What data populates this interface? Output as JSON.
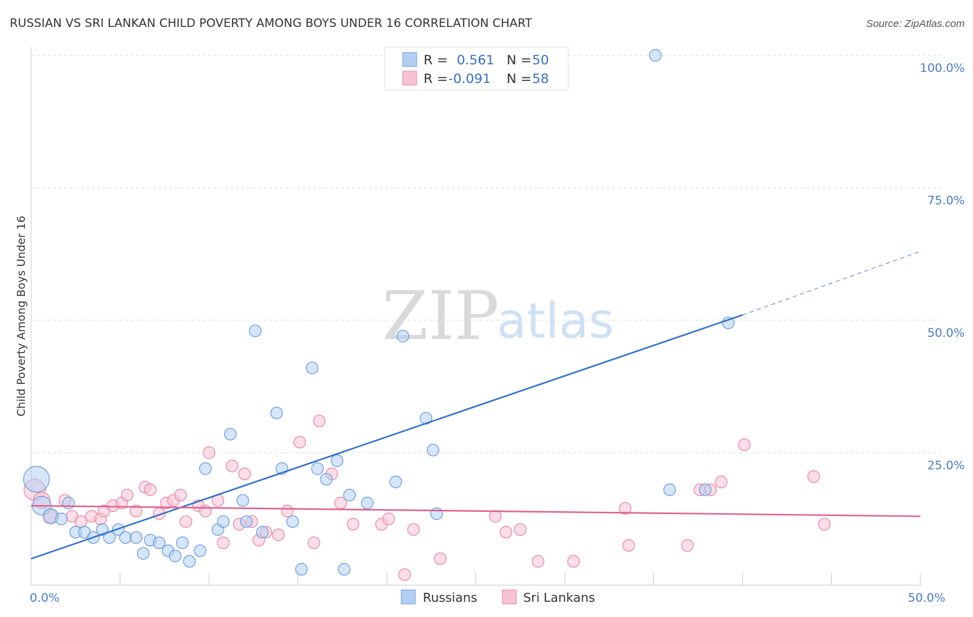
{
  "title": "RUSSIAN VS SRI LANKAN CHILD POVERTY AMONG BOYS UNDER 16 CORRELATION CHART",
  "source": "Source: ZipAtlas.com",
  "watermark": {
    "zip": "ZIP",
    "atlas": "atlas"
  },
  "colors": {
    "russians_fill": "#b5cff3",
    "russians_stroke": "#6d9fe0",
    "russians_line": "#2f6fcc",
    "srilankans_fill": "#f7c3d3",
    "srilankans_stroke": "#e88aa8",
    "srilankans_line": "#e0608c",
    "grid": "#dddddd",
    "tick_text": "#4a7bc4"
  },
  "legend": {
    "russians": {
      "r_label": "R =",
      "r_value": "0.561",
      "n_label": "N =",
      "n_value": "50"
    },
    "srilankans": {
      "r_label": "R =",
      "r_value": "-0.091",
      "n_label": "N =",
      "n_value": "58"
    }
  },
  "chart_data": {
    "type": "scatter",
    "title": "RUSSIAN VS SRI LANKAN CHILD POVERTY AMONG BOYS UNDER 16 CORRELATION CHART",
    "xlabel": "",
    "ylabel": "Child Poverty Among Boys Under 16",
    "xlim": [
      0,
      50
    ],
    "ylim": [
      0,
      100
    ],
    "x_ticks": [
      {
        "value": 0,
        "label": "0.0%"
      },
      {
        "value": 50,
        "label": "50.0%"
      }
    ],
    "y_ticks": [
      {
        "value": 25,
        "label": "25.0%"
      },
      {
        "value": 50,
        "label": "50.0%"
      },
      {
        "value": 75,
        "label": "75.0%"
      },
      {
        "value": 100,
        "label": "100.0%"
      }
    ],
    "grid": true,
    "legend_placement": "top-center",
    "series": [
      {
        "name": "Russians",
        "trend": {
          "x0": 0,
          "y0": 5,
          "x1": 40,
          "y1": 51,
          "dashed_to_x": 50,
          "dashed_to_y": 63
        },
        "points": [
          [
            0.3,
            20,
            2.2
          ],
          [
            0.6,
            15,
            1.6
          ],
          [
            1.1,
            13,
            1.3
          ],
          [
            1.7,
            12.5,
            1.0
          ],
          [
            2.1,
            15.5,
            1.0
          ],
          [
            2.5,
            10,
            1.0
          ],
          [
            3.0,
            10,
            1.0
          ],
          [
            3.5,
            9,
            1.0
          ],
          [
            4.0,
            10.5,
            1.0
          ],
          [
            4.4,
            9,
            1.0
          ],
          [
            4.9,
            10.5,
            1.0
          ],
          [
            5.3,
            9,
            1.0
          ],
          [
            5.9,
            9,
            1.0
          ],
          [
            6.3,
            6,
            1.0
          ],
          [
            6.7,
            8.5,
            1.0
          ],
          [
            7.2,
            8,
            1.0
          ],
          [
            7.7,
            6.5,
            1.0
          ],
          [
            8.1,
            5.5,
            1.0
          ],
          [
            8.5,
            8,
            1.0
          ],
          [
            8.9,
            4.5,
            1.0
          ],
          [
            9.5,
            6.5,
            1.0
          ],
          [
            9.8,
            22,
            1.0
          ],
          [
            10.5,
            10.5,
            1.0
          ],
          [
            10.8,
            12,
            1.0
          ],
          [
            11.2,
            28.5,
            1.0
          ],
          [
            11.9,
            16,
            1.0
          ],
          [
            12.1,
            12,
            1.0
          ],
          [
            12.6,
            48,
            1.0
          ],
          [
            13.0,
            10,
            1.0
          ],
          [
            13.8,
            32.5,
            1.0
          ],
          [
            14.1,
            22,
            1.0
          ],
          [
            14.7,
            12,
            1.0
          ],
          [
            15.2,
            3,
            1.0
          ],
          [
            15.8,
            41,
            1.0
          ],
          [
            16.1,
            22,
            1.0
          ],
          [
            16.6,
            20,
            1.0
          ],
          [
            17.2,
            23.5,
            1.0
          ],
          [
            17.6,
            3,
            1.0
          ],
          [
            17.9,
            17,
            1.0
          ],
          [
            18.9,
            15.5,
            1.0
          ],
          [
            20.5,
            19.5,
            1.0
          ],
          [
            20.9,
            47,
            1.0
          ],
          [
            22.2,
            31.5,
            1.0
          ],
          [
            22.6,
            25.5,
            1.0
          ],
          [
            22.8,
            13.5,
            1.0
          ],
          [
            27.0,
            100,
            1.0
          ],
          [
            35.1,
            100,
            1.0
          ],
          [
            35.9,
            18,
            1.0
          ],
          [
            37.9,
            18,
            1.0
          ],
          [
            39.2,
            49.5,
            1.0
          ]
        ]
      },
      {
        "name": "Sri Lankans",
        "trend": {
          "x0": 0,
          "y0": 15,
          "x1": 50,
          "y1": 13
        },
        "points": [
          [
            0.2,
            18,
            1.8
          ],
          [
            0.6,
            16,
            1.4
          ],
          [
            1.1,
            13,
            1.1
          ],
          [
            1.9,
            16,
            1.0
          ],
          [
            2.3,
            13,
            1.0
          ],
          [
            2.8,
            12,
            1.0
          ],
          [
            3.4,
            13,
            1.0
          ],
          [
            3.9,
            12.5,
            1.0
          ],
          [
            4.1,
            14,
            1.0
          ],
          [
            4.6,
            15,
            1.0
          ],
          [
            5.1,
            15.5,
            1.0
          ],
          [
            5.4,
            17,
            1.0
          ],
          [
            5.9,
            14,
            1.0
          ],
          [
            6.4,
            18.5,
            1.0
          ],
          [
            6.7,
            18,
            1.0
          ],
          [
            7.2,
            13.5,
            1.0
          ],
          [
            7.6,
            15.5,
            1.0
          ],
          [
            8.0,
            16,
            1.0
          ],
          [
            8.4,
            17,
            1.0
          ],
          [
            8.7,
            12,
            1.0
          ],
          [
            9.4,
            15,
            1.0
          ],
          [
            9.8,
            14,
            1.0
          ],
          [
            10.0,
            25,
            1.0
          ],
          [
            10.5,
            16,
            1.0
          ],
          [
            10.8,
            8,
            1.0
          ],
          [
            11.3,
            22.5,
            1.0
          ],
          [
            11.7,
            11.5,
            1.0
          ],
          [
            12.0,
            21,
            1.0
          ],
          [
            12.4,
            12,
            1.0
          ],
          [
            12.8,
            8.5,
            1.0
          ],
          [
            13.2,
            10,
            1.0
          ],
          [
            13.9,
            9.5,
            1.0
          ],
          [
            14.4,
            14,
            1.0
          ],
          [
            15.1,
            27,
            1.0
          ],
          [
            15.9,
            8,
            1.0
          ],
          [
            16.2,
            31,
            1.0
          ],
          [
            16.9,
            21,
            1.0
          ],
          [
            17.4,
            15.5,
            1.0
          ],
          [
            18.1,
            11.5,
            1.0
          ],
          [
            19.7,
            11.5,
            1.0
          ],
          [
            20.1,
            12.5,
            1.0
          ],
          [
            21.0,
            2,
            1.0
          ],
          [
            21.5,
            10.5,
            1.0
          ],
          [
            23.0,
            5,
            1.0
          ],
          [
            26.1,
            13,
            1.0
          ],
          [
            26.7,
            10,
            1.0
          ],
          [
            27.5,
            10.5,
            1.0
          ],
          [
            28.5,
            4.5,
            1.0
          ],
          [
            30.5,
            4.5,
            1.0
          ],
          [
            33.4,
            14.5,
            1.0
          ],
          [
            33.6,
            7.5,
            1.0
          ],
          [
            36.9,
            7.5,
            1.0
          ],
          [
            37.6,
            18,
            1.0
          ],
          [
            38.8,
            19.5,
            1.0
          ],
          [
            40.1,
            26.5,
            1.0
          ],
          [
            44.0,
            20.5,
            1.0
          ],
          [
            44.6,
            11.5,
            1.0
          ],
          [
            38.2,
            18,
            1.0
          ]
        ]
      }
    ]
  },
  "bottom_legend": [
    "Russians",
    "Sri Lankans"
  ]
}
